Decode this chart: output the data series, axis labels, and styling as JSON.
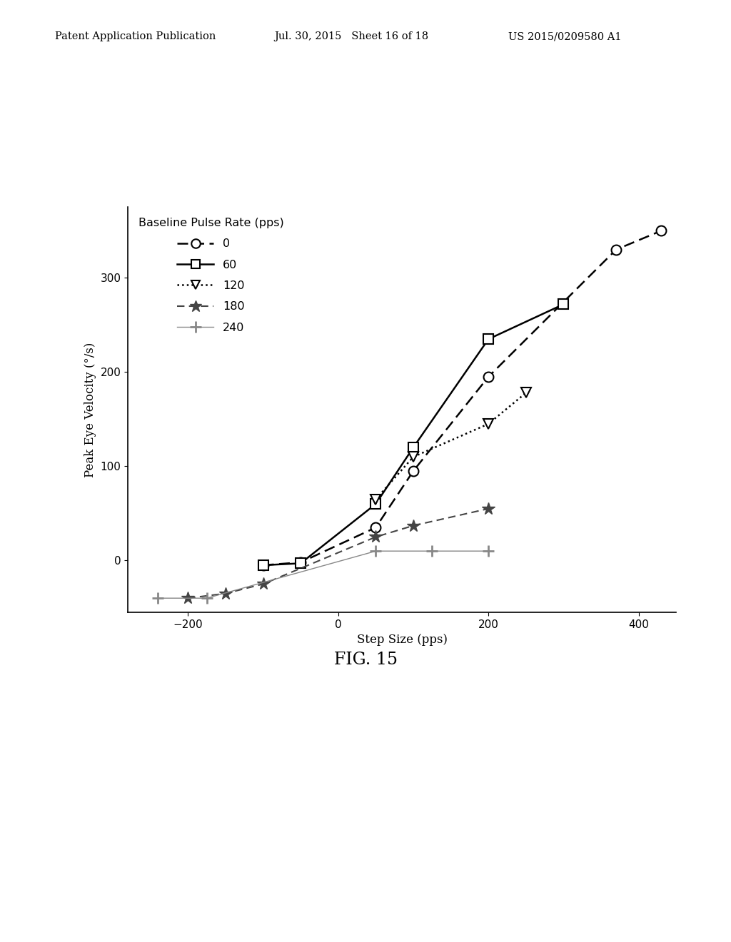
{
  "title": "FIG. 15",
  "xlabel": "Step Size (pps)",
  "ylabel": "Peak Eye Velocity (°/s)",
  "legend_title": "Baseline Pulse Rate (pps)",
  "xlim": [
    -280,
    450
  ],
  "ylim": [
    -55,
    375
  ],
  "xticks": [
    -200,
    0,
    200,
    400
  ],
  "yticks": [
    0,
    100,
    200,
    300
  ],
  "series": [
    {
      "label": "0",
      "x": [
        -100,
        -50,
        50,
        100,
        200,
        370,
        430
      ],
      "y": [
        -5,
        -2,
        35,
        95,
        195,
        330,
        350
      ],
      "linestyle": "--",
      "marker": "o",
      "color": "#000000",
      "markersize": 10,
      "linewidth": 1.8
    },
    {
      "label": "60",
      "x": [
        -100,
        -50,
        50,
        100,
        200,
        300
      ],
      "y": [
        -5,
        -3,
        60,
        120,
        235,
        272
      ],
      "linestyle": "-",
      "marker": "s",
      "color": "#000000",
      "markersize": 10,
      "linewidth": 1.8
    },
    {
      "label": "120",
      "x": [
        50,
        100,
        200,
        250
      ],
      "y": [
        65,
        110,
        145,
        178
      ],
      "linestyle": ":",
      "marker": "v",
      "color": "#000000",
      "markersize": 10,
      "linewidth": 1.8
    },
    {
      "label": "180",
      "x": [
        -200,
        -150,
        -100,
        50,
        100,
        200
      ],
      "y": [
        -40,
        -35,
        -25,
        25,
        37,
        55
      ],
      "linestyle": "--",
      "marker": "*",
      "color": "#444444",
      "markersize": 13,
      "linewidth": 1.5
    },
    {
      "label": "240",
      "x": [
        -240,
        -175,
        50,
        125,
        200
      ],
      "y": [
        -40,
        -40,
        10,
        10,
        10
      ],
      "linestyle": "-",
      "marker": "+",
      "color": "#888888",
      "markersize": 11,
      "linewidth": 1.0
    }
  ],
  "header_text": "Patent Application Publication",
  "header_date": "Jul. 30, 2015   Sheet 16 of 18",
  "header_patent": "US 2015/0209580 A1",
  "background_color": "#ffffff"
}
